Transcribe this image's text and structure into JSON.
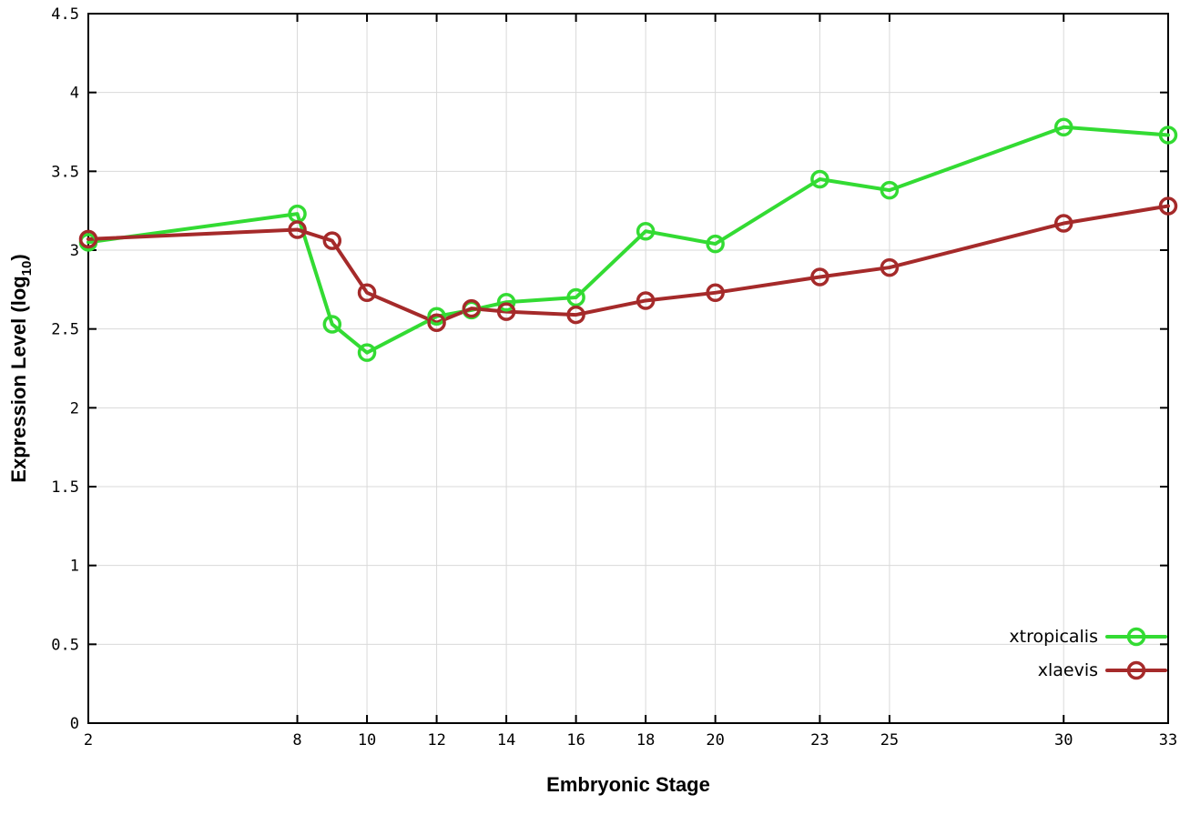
{
  "chart_data": {
    "type": "line",
    "x": [
      2,
      8,
      9,
      10,
      12,
      13,
      14,
      16,
      18,
      20,
      23,
      25,
      30,
      33
    ],
    "series": [
      {
        "name": "xtropicalis",
        "color": "#33db33",
        "values": [
          3.05,
          3.23,
          2.53,
          2.35,
          2.58,
          2.62,
          2.67,
          2.7,
          3.12,
          3.04,
          3.45,
          3.38,
          3.78,
          3.73
        ]
      },
      {
        "name": "xlaevis",
        "color": "#a52a2a",
        "values": [
          3.07,
          3.13,
          3.06,
          2.73,
          2.54,
          2.63,
          2.61,
          2.59,
          2.68,
          2.73,
          2.83,
          2.89,
          3.17,
          3.28
        ]
      }
    ],
    "xlabel": "Embryonic Stage",
    "ylabel_prefix": "Expression Level (log",
    "ylabel_sub": "10",
    "ylabel_suffix": ")",
    "xticks": [
      2,
      8,
      10,
      12,
      14,
      16,
      18,
      20,
      23,
      25,
      30,
      33
    ],
    "yticks": [
      "0",
      "0.5",
      "1",
      "1.5",
      "2",
      "2.5",
      "3",
      "3.5",
      "4",
      "4.5"
    ],
    "ytick_values": [
      0,
      0.5,
      1,
      1.5,
      2,
      2.5,
      3,
      3.5,
      4,
      4.5
    ],
    "xlim": [
      2,
      33
    ],
    "ylim": [
      0,
      4.5
    ],
    "grid": true,
    "legend_position": "bottom-right",
    "legend_entries": [
      "xtropicalis",
      "xlaevis"
    ],
    "colors": {
      "grid": "#d9d9d9",
      "axis": "#000000",
      "text": "#000000"
    }
  }
}
